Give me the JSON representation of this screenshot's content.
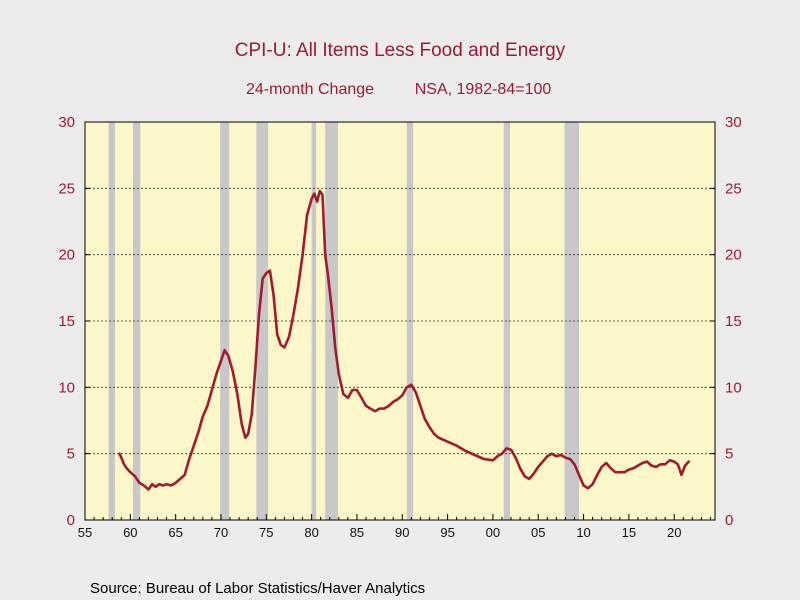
{
  "chart_data": {
    "type": "line",
    "title": "CPI-U: All Items Less Food and Energy",
    "subtitle_left": "24-month Change",
    "subtitle_right": "NSA, 1982-84=100",
    "source": "Source:  Bureau of Labor Statistics/Haver Analytics",
    "xlim": [
      1955,
      2024.5
    ],
    "ylim": [
      0,
      30
    ],
    "x_tick_labels": [
      {
        "year": 1955,
        "label": "55"
      },
      {
        "year": 1960,
        "label": "60"
      },
      {
        "year": 1965,
        "label": "65"
      },
      {
        "year": 1970,
        "label": "70"
      },
      {
        "year": 1975,
        "label": "75"
      },
      {
        "year": 1980,
        "label": "80"
      },
      {
        "year": 1985,
        "label": "85"
      },
      {
        "year": 1990,
        "label": "90"
      },
      {
        "year": 1995,
        "label": "95"
      },
      {
        "year": 2000,
        "label": "00"
      },
      {
        "year": 2005,
        "label": "05"
      },
      {
        "year": 2010,
        "label": "10"
      },
      {
        "year": 2015,
        "label": "15"
      },
      {
        "year": 2020,
        "label": "20"
      }
    ],
    "y_ticks_left": [
      "0",
      "5",
      "10",
      "15",
      "20",
      "25",
      "30"
    ],
    "y_ticks_right": [
      "0",
      "5",
      "10",
      "15",
      "20",
      "25",
      "30"
    ],
    "grid": "horizontal dashed",
    "colors": {
      "plot_background": "#fbf7c8",
      "line": "#a31a2e",
      "recession_shade": "#c8c8c8",
      "title": "#9b1b30"
    },
    "recessions": [
      [
        1957.6,
        1958.3
      ],
      [
        1960.3,
        1961.1
      ],
      [
        1969.9,
        1970.9
      ],
      [
        1973.9,
        1975.2
      ],
      [
        1980.0,
        1980.5
      ],
      [
        1981.5,
        1982.9
      ],
      [
        1990.5,
        1991.2
      ],
      [
        2001.2,
        2001.9
      ],
      [
        2007.9,
        2009.5
      ]
    ],
    "series": [
      {
        "x": [
          1958.8,
          1959.0,
          1959.3,
          1959.6,
          1960.0,
          1960.5,
          1961.0,
          1961.5,
          1962.0,
          1962.4,
          1962.8,
          1963.2,
          1963.6,
          1964.0,
          1964.5,
          1965.0,
          1965.5,
          1966.0,
          1966.5,
          1967.0,
          1967.5,
          1968.0,
          1968.5,
          1969.0,
          1969.5,
          1970.0,
          1970.4,
          1970.8,
          1971.3,
          1971.8,
          1972.3,
          1972.7,
          1973.0,
          1973.4,
          1973.8,
          1974.2,
          1974.6,
          1975.0,
          1975.4,
          1975.8,
          1976.2,
          1976.6,
          1977.0,
          1977.5,
          1978.0,
          1978.5,
          1979.0,
          1979.5,
          1980.0,
          1980.3,
          1980.6,
          1980.9,
          1981.2,
          1981.5,
          1981.8,
          1982.2,
          1982.6,
          1983.0,
          1983.5,
          1984.0,
          1984.5,
          1985.0,
          1985.5,
          1986.0,
          1986.5,
          1987.0,
          1987.5,
          1988.0,
          1988.5,
          1989.0,
          1989.5,
          1990.0,
          1990.5,
          1991.0,
          1991.5,
          1992.0,
          1992.5,
          1993.0,
          1993.5,
          1994.0,
          1995.0,
          1996.0,
          1997.0,
          1998.0,
          1999.0,
          2000.0,
          2000.5,
          2001.0,
          2001.5,
          2002.0,
          2002.5,
          2003.0,
          2003.5,
          2004.0,
          2004.5,
          2005.0,
          2005.5,
          2006.0,
          2006.5,
          2007.0,
          2007.5,
          2008.0,
          2008.5,
          2009.0,
          2009.5,
          2010.0,
          2010.5,
          2011.0,
          2011.5,
          2012.0,
          2012.5,
          2013.0,
          2013.5,
          2014.0,
          2014.5,
          2015.0,
          2015.5,
          2016.0,
          2016.5,
          2017.0,
          2017.5,
          2018.0,
          2018.5,
          2019.0,
          2019.5,
          2020.0,
          2020.4,
          2020.8,
          2021.2,
          2021.6
        ],
        "y": [
          5.0,
          4.7,
          4.2,
          3.9,
          3.6,
          3.3,
          2.8,
          2.6,
          2.3,
          2.7,
          2.5,
          2.7,
          2.6,
          2.7,
          2.6,
          2.8,
          3.1,
          3.4,
          4.6,
          5.6,
          6.6,
          7.8,
          8.6,
          9.8,
          11.0,
          12.0,
          12.8,
          12.4,
          11.2,
          9.5,
          7.2,
          6.2,
          6.5,
          8.0,
          11.5,
          15.5,
          18.2,
          18.6,
          18.8,
          17.0,
          14.0,
          13.2,
          13.0,
          13.8,
          15.5,
          17.5,
          20.0,
          23.0,
          24.2,
          24.6,
          24.0,
          24.8,
          24.5,
          20.0,
          18.5,
          16.0,
          13.0,
          11.0,
          9.5,
          9.2,
          9.8,
          9.8,
          9.2,
          8.6,
          8.4,
          8.2,
          8.4,
          8.4,
          8.6,
          8.9,
          9.1,
          9.4,
          10.0,
          10.2,
          9.6,
          8.6,
          7.6,
          7.0,
          6.5,
          6.2,
          5.9,
          5.6,
          5.2,
          4.9,
          4.6,
          4.5,
          4.8,
          5.0,
          5.4,
          5.3,
          4.7,
          3.9,
          3.3,
          3.1,
          3.5,
          4.0,
          4.4,
          4.8,
          5.0,
          4.8,
          4.9,
          4.7,
          4.6,
          4.2,
          3.4,
          2.6,
          2.4,
          2.7,
          3.4,
          4.0,
          4.3,
          3.9,
          3.6,
          3.6,
          3.6,
          3.8,
          3.9,
          4.1,
          4.3,
          4.4,
          4.1,
          4.0,
          4.2,
          4.2,
          4.5,
          4.4,
          4.2,
          3.4,
          4.1,
          4.4
        ]
      }
    ]
  }
}
